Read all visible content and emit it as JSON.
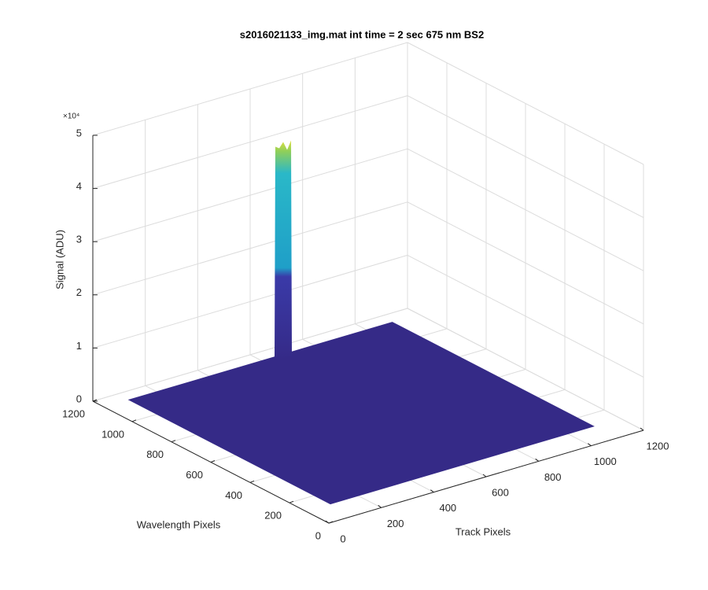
{
  "chart_data": {
    "type": "surface3d",
    "title": "s2016021133_img.mat int time = 2 sec  675 nm BS2",
    "xlabel": "Track Pixels",
    "ylabel": "Wavelength Pixels",
    "zlabel": "Signal (ADU)",
    "xlim": [
      0,
      1200
    ],
    "xticks": [
      0,
      200,
      400,
      600,
      800,
      1000,
      1200
    ],
    "ylim": [
      0,
      1200
    ],
    "yticks": [
      0,
      200,
      400,
      600,
      800,
      1000,
      1200
    ],
    "zlim": [
      0,
      50000
    ],
    "zticks": [
      {
        "value": 0,
        "label": "0"
      },
      {
        "value": 10000,
        "label": "1"
      },
      {
        "value": 20000,
        "label": "2"
      },
      {
        "value": 30000,
        "label": "3"
      },
      {
        "value": 40000,
        "label": "4"
      },
      {
        "value": 50000,
        "label": "5"
      }
    ],
    "zticks_exponent": "×10⁴",
    "grid": true,
    "surface": {
      "track_extent": [
        92,
        1100
      ],
      "wavelength_extent": [
        115,
        1144
      ],
      "base": 0,
      "peak": {
        "track": 666,
        "wavelength": 1120,
        "value": 40000
      },
      "color": "#352a87"
    }
  }
}
